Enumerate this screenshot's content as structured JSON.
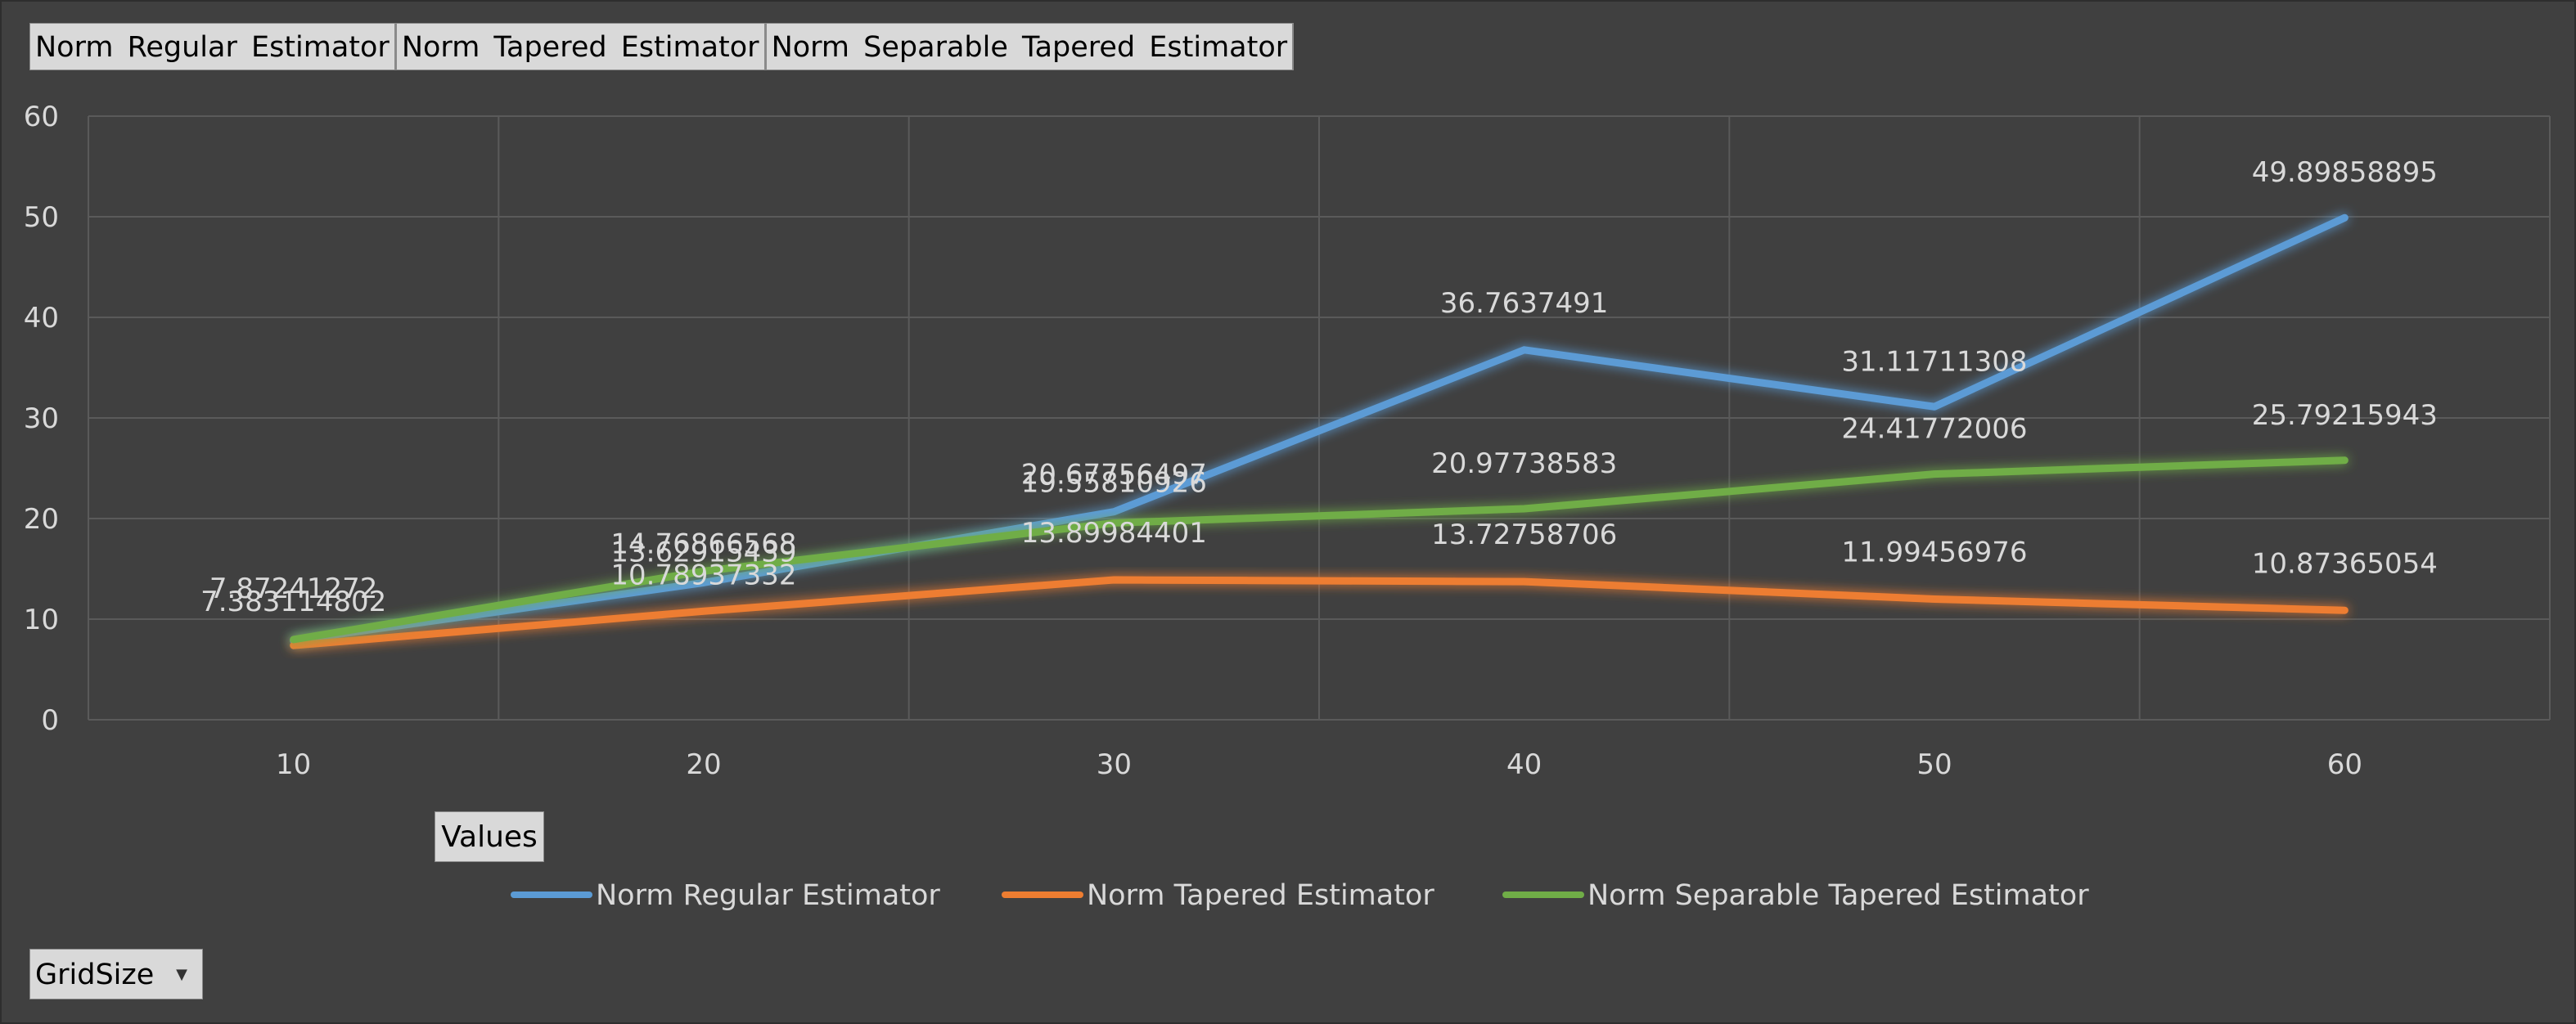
{
  "field_buttons": [
    "Norm Regular Estimator",
    "Norm Tapered Estimator",
    "Norm Separable Tapered Estimator"
  ],
  "values_button": "Values",
  "gridsize_button": "GridSize",
  "colors": {
    "background": "#404040",
    "grid": "#5a5a5a",
    "text": "#d9d9d9",
    "Norm Regular Estimator": "#5b9bd5",
    "Norm Tapered Estimator": "#ed7d31",
    "Norm Separable Tapered Estimator": "#70ad47"
  },
  "chart_data": {
    "type": "line",
    "categories": [
      "10",
      "20",
      "30",
      "40",
      "50",
      "60"
    ],
    "ylim": [
      0,
      60
    ],
    "yticks": [
      0,
      10,
      20,
      30,
      40,
      50,
      60
    ],
    "grid": true,
    "legend": "bottom",
    "series": [
      {
        "name": "Norm Regular Estimator",
        "values": [
          7.87241272,
          13.62915439,
          20.67756497,
          36.7637491,
          31.11711308,
          49.89858895
        ],
        "labels": [
          "7.87241272",
          "13.62915439",
          "20.67756497",
          "36.7637491",
          "31.11711308",
          "49.89858895"
        ]
      },
      {
        "name": "Norm Tapered Estimator",
        "values": [
          7.383114802,
          10.78937332,
          13.89984401,
          13.72758706,
          11.99456976,
          10.87365054
        ],
        "labels": [
          "7.383114802",
          "10.78937332",
          "13.89984401",
          "13.72758706",
          "11.99456976",
          "10.87365054"
        ]
      },
      {
        "name": "Norm Separable Tapered Estimator",
        "values": [
          7.97,
          14.76866568,
          19.55810926,
          20.97738583,
          24.41772006,
          25.79215943
        ],
        "labels": [
          "",
          "14.76866568",
          "19.55810926",
          "20.97738583",
          "24.41772006",
          "25.79215943"
        ]
      }
    ]
  }
}
